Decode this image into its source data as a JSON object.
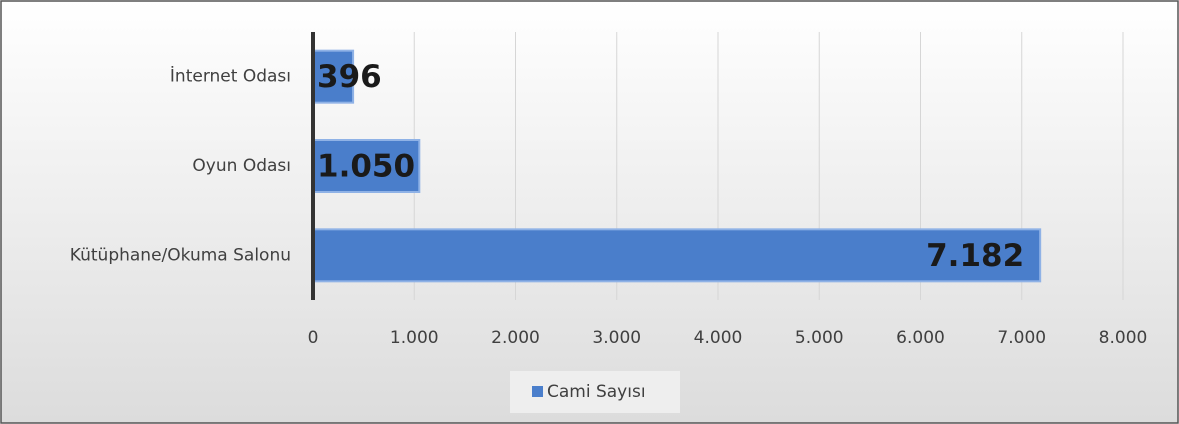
{
  "chart_data": {
    "type": "barh",
    "categories": [
      "İnternet Odası",
      "Oyun Odası",
      "Kütüphane/Okuma Salonu"
    ],
    "series": [
      {
        "name": "Cami Sayısı",
        "color": "#4a7ecb",
        "values": [
          396,
          1050,
          7182
        ],
        "value_labels": [
          "396",
          "1.050",
          "7.182"
        ]
      }
    ],
    "xlim": [
      0,
      8000
    ],
    "xticks": [
      0,
      {
        "value": 1000,
        "label": "1.000"
      },
      {
        "value": 2000,
        "label": "2.000"
      },
      {
        "value": 3000,
        "label": "3.000"
      },
      {
        "value": 4000,
        "label": "4.000"
      },
      {
        "value": 5000,
        "label": "5.000"
      },
      {
        "value": 6000,
        "label": "6.000"
      },
      {
        "value": 7000,
        "label": "7.000"
      },
      {
        "value": 8000,
        "label": "8.000"
      }
    ],
    "grid": true,
    "legend": "bottom"
  }
}
